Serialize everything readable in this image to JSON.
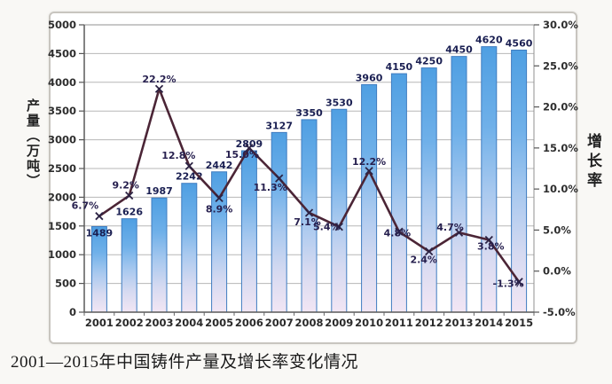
{
  "chart_data": {
    "type": "combo",
    "title": "2001—2015年中国铸件产量及增长率变化情况",
    "categories": [
      "2001",
      "2002",
      "2003",
      "2004",
      "2005",
      "2006",
      "2007",
      "2008",
      "2009",
      "2010",
      "2011",
      "2012",
      "2013",
      "2014",
      "2015"
    ],
    "series": [
      {
        "name": "产量",
        "chart_type": "bar",
        "axis": "left",
        "values": [
          1489,
          1626,
          1987,
          2242,
          2442,
          2809,
          3127,
          3350,
          3530,
          3960,
          4150,
          4250,
          4450,
          4620,
          4560
        ],
        "labels": [
          "1489",
          "1626",
          "1987",
          "2242",
          "2442",
          "2809",
          "3127",
          "3350",
          "3530",
          "3960",
          "4150",
          "4250",
          "4450",
          "4620",
          "4560"
        ]
      },
      {
        "name": "增长率",
        "chart_type": "line",
        "axis": "right",
        "values": [
          6.7,
          9.2,
          22.2,
          12.8,
          8.9,
          15.0,
          11.3,
          7.1,
          5.4,
          12.2,
          4.8,
          2.4,
          4.7,
          3.8,
          -1.3
        ],
        "labels": [
          "6.7%",
          "9.2%",
          "22.2%",
          "12.8%",
          "8.9%",
          "15.0%",
          "11.3%",
          "7.1%",
          "5.4%",
          "12.2%",
          "4.8%",
          "2.4%",
          "4.7%",
          "3.8%",
          "-1.3%"
        ]
      }
    ],
    "left_axis": {
      "title": "产量（万吨）",
      "min": 0,
      "max": 5000,
      "step": 500,
      "ticks": [
        "5000",
        "4500",
        "4000",
        "3500",
        "3000",
        "2500",
        "2000",
        "1500",
        "1000",
        "500",
        "0"
      ]
    },
    "right_axis": {
      "title": "增长率",
      "min": -5,
      "max": 30,
      "step": 5,
      "ticks": [
        "30.0%",
        "25.0%",
        "20.0%",
        "15.0%",
        "10.0%",
        "5.0%",
        "0.0%",
        "-5.0%"
      ]
    },
    "grid": true,
    "legend": "none",
    "colors": {
      "bar_top": "#4f9fe2",
      "bar_mid": "#a9c9ef",
      "bar_bottom": "#f2e6f4",
      "bar_stroke": "#3f7cc0",
      "line": "#4b2536",
      "marker": "#2c2344",
      "bar_label": "#1a1f52",
      "growth_label": "#27204f",
      "axis_text": "#2e2e2e",
      "gridline": "#b7b7b7"
    }
  }
}
